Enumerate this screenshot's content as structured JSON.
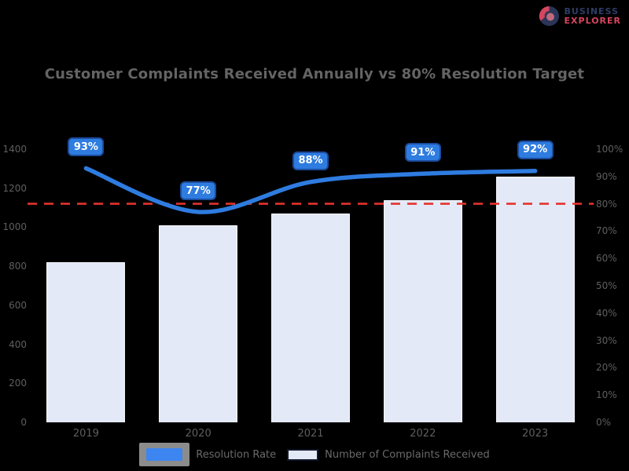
{
  "logo": {
    "line1": "BUSINESS",
    "line2": "EXPLORER"
  },
  "title": "Customer Complaints Received Annually vs 80% Resolution Target",
  "chart_data": {
    "type": "bar+line combo",
    "categories": [
      "2019",
      "2020",
      "2021",
      "2022",
      "2023"
    ],
    "series": [
      {
        "name": "Resolution Rate",
        "type": "line",
        "axis": "right",
        "values": [
          93,
          77,
          88,
          91,
          92
        ],
        "labels": [
          "93%",
          "77%",
          "88%",
          "91%",
          "92%"
        ],
        "color": "#2e7ce0"
      },
      {
        "name": "Number of Complaints Received",
        "type": "bar",
        "axis": "left",
        "values": [
          820,
          1010,
          1070,
          1140,
          1260
        ],
        "color": "#e4e9f8"
      }
    ],
    "threshold": {
      "value": 80,
      "axis": "right",
      "style": "dashed",
      "color": "#e5322d"
    },
    "left_axis": {
      "min": 0,
      "max": 1400,
      "step": 200,
      "tick_labels": [
        "0",
        "200",
        "400",
        "600",
        "800",
        "1000",
        "1200",
        "1400"
      ]
    },
    "right_axis": {
      "min": 0,
      "max": 100,
      "step": 10,
      "tick_labels": [
        "0%",
        "10%",
        "20%",
        "30%",
        "40%",
        "50%",
        "60%",
        "70%",
        "80%",
        "90%",
        "100%"
      ]
    },
    "legend": [
      {
        "label": "Resolution Rate",
        "swatch": "#3d85f0",
        "type": "line"
      },
      {
        "label": "Number of Complaints Received",
        "swatch": "#e4e9f8",
        "type": "bar"
      }
    ],
    "grid": false,
    "legend_position": "bottom-center"
  }
}
